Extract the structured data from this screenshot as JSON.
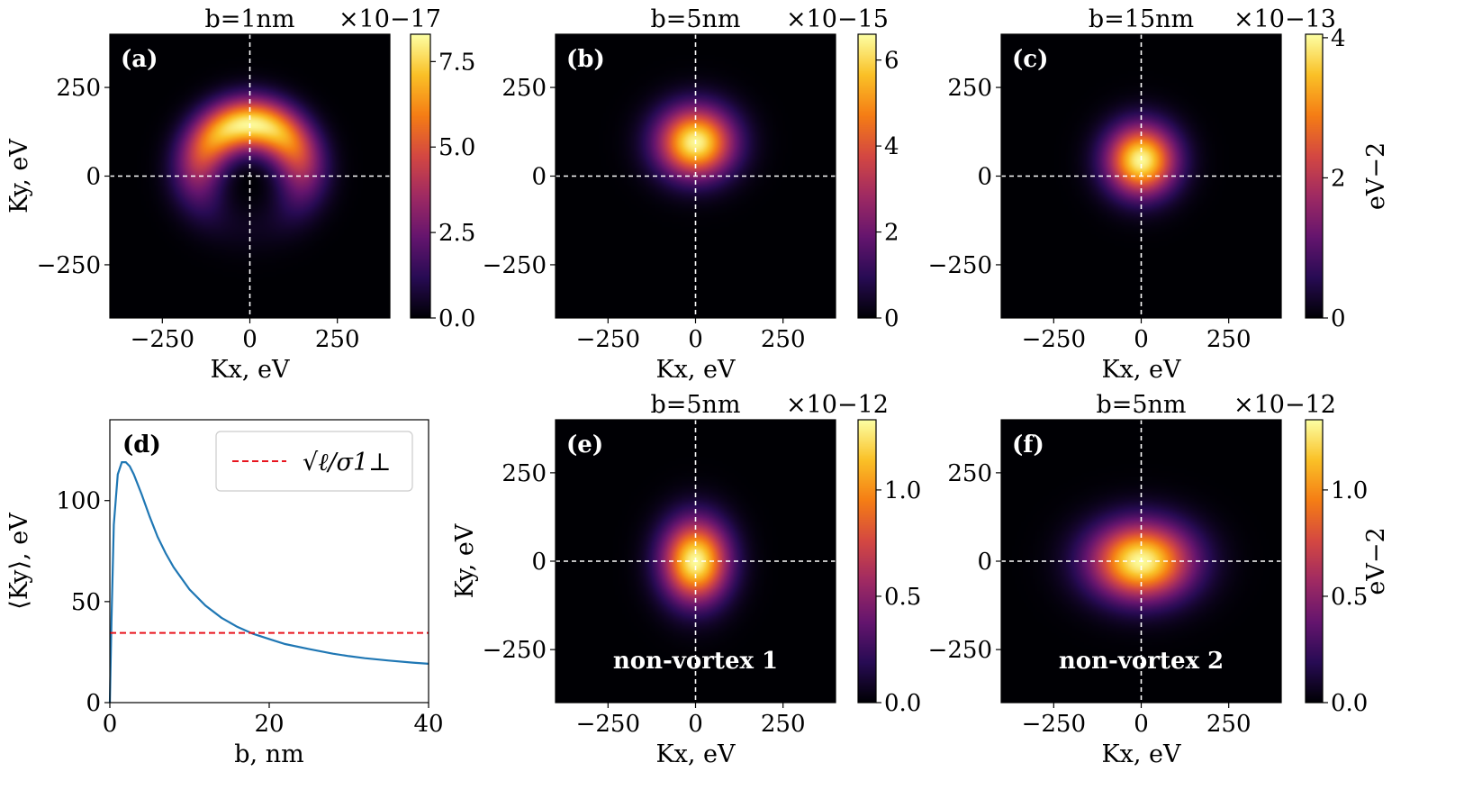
{
  "colors": {
    "curve": "#1f77b4",
    "reference_line": "#e8141e",
    "crosshair": "#ffffff",
    "colormap": "inferno"
  },
  "chart_data": [
    {
      "type": "heatmap",
      "panel": "(a)",
      "title": "b=1nm",
      "exponent": "×10−17",
      "xlabel": "Kx, eV",
      "ylabel": "Ky, eV",
      "xlim": [
        -400,
        400
      ],
      "ylim": [
        -400,
        400
      ],
      "xticks": [
        "−250",
        "0",
        "250"
      ],
      "yticks": [
        "−250",
        "0",
        "250"
      ],
      "colorbar": {
        "min": 0,
        "max": 8.3,
        "ticks": [
          "0.0",
          "2.5",
          "5.0",
          "7.5"
        ],
        "label": ""
      },
      "distribution": {
        "shape": "arc",
        "center": [
          0,
          0
        ],
        "radius": 145,
        "width": 52,
        "peak": [
          0,
          155
        ],
        "peak_value": 8.2
      },
      "annotation": ""
    },
    {
      "type": "heatmap",
      "panel": "(b)",
      "title": "b=5nm",
      "exponent": "×10−15",
      "xlabel": "Kx, eV",
      "ylabel": "",
      "xlim": [
        -400,
        400
      ],
      "ylim": [
        -400,
        400
      ],
      "xticks": [
        "−250",
        "0",
        "250"
      ],
      "yticks": [
        "−250",
        "0",
        "250"
      ],
      "colorbar": {
        "min": 0,
        "max": 6.6,
        "ticks": [
          "0",
          "2",
          "4",
          "6"
        ],
        "label": ""
      },
      "distribution": {
        "shape": "gaussian",
        "center": [
          0,
          95
        ],
        "sigma": [
          75,
          68
        ],
        "peak_value": 6.5
      },
      "annotation": ""
    },
    {
      "type": "heatmap",
      "panel": "(c)",
      "title": "b=15nm",
      "exponent": "×10−13",
      "xlabel": "Kx, eV",
      "ylabel": "",
      "xlim": [
        -400,
        400
      ],
      "ylim": [
        -400,
        400
      ],
      "xticks": [
        "−250",
        "0",
        "250"
      ],
      "yticks": [
        "−250",
        "0",
        "250"
      ],
      "colorbar": {
        "min": 0,
        "max": 4.05,
        "ticks": [
          "0",
          "2",
          "4"
        ],
        "label": "eV−2"
      },
      "distribution": {
        "shape": "gaussian",
        "center": [
          0,
          45
        ],
        "sigma": [
          68,
          68
        ],
        "peak_value": 4.0
      },
      "annotation": ""
    },
    {
      "type": "line",
      "panel": "(d)",
      "title": "",
      "xlabel": "b, nm",
      "ylabel": "⟨Ky⟩, eV",
      "xlim": [
        0,
        40
      ],
      "ylim": [
        0,
        140
      ],
      "xticks": [
        "0",
        "20",
        "40"
      ],
      "yticks": [
        "0",
        "50",
        "100"
      ],
      "series": [
        {
          "name": "",
          "x": [
            0,
            0.2,
            0.5,
            1.0,
            1.5,
            2.0,
            2.5,
            3,
            4,
            5,
            6,
            7,
            8,
            10,
            12,
            14,
            16,
            18,
            20,
            22,
            25,
            28,
            30,
            32,
            35,
            38,
            40
          ],
          "y": [
            0,
            40,
            88,
            113,
            119,
            119,
            117,
            113,
            103,
            92,
            82,
            74,
            67,
            56,
            48,
            42,
            37.5,
            34,
            31.5,
            29,
            26.5,
            24.2,
            23,
            22,
            20.8,
            19.8,
            19.2
          ]
        }
      ],
      "reference_line": {
        "y": 34.5,
        "legend": "√ℓ/σ1⊥"
      },
      "legend_position": "top-right",
      "annotation": ""
    },
    {
      "type": "heatmap",
      "panel": "(e)",
      "title": "b=5nm",
      "exponent": "×10−12",
      "xlabel": "Kx, eV",
      "ylabel": "Ky, eV",
      "xlim": [
        -400,
        400
      ],
      "ylim": [
        -400,
        400
      ],
      "xticks": [
        "−250",
        "0",
        "250"
      ],
      "yticks": [
        "−250",
        "0",
        "250"
      ],
      "colorbar": {
        "min": 0,
        "max": 1.33,
        "ticks": [
          "0.0",
          "0.5",
          "1.0"
        ],
        "label": ""
      },
      "distribution": {
        "shape": "gaussian",
        "center": [
          0,
          0
        ],
        "sigma": [
          65,
          80
        ],
        "peak_value": 1.32
      },
      "annotation": "non-vortex 1"
    },
    {
      "type": "heatmap",
      "panel": "(f)",
      "title": "b=5nm",
      "exponent": "×10−12",
      "xlabel": "Kx, eV",
      "ylabel": "",
      "xlim": [
        -400,
        400
      ],
      "ylim": [
        -400,
        400
      ],
      "xticks": [
        "−250",
        "0",
        "250"
      ],
      "yticks": [
        "−250",
        "0",
        "250"
      ],
      "colorbar": {
        "min": 0,
        "max": 1.33,
        "ticks": [
          "0.0",
          "0.5",
          "1.0"
        ],
        "label": "eV−2"
      },
      "distribution": {
        "shape": "gaussian",
        "center": [
          0,
          0
        ],
        "sigma": [
          100,
          75
        ],
        "peak_value": 1.32
      },
      "annotation": "non-vortex 2"
    }
  ]
}
